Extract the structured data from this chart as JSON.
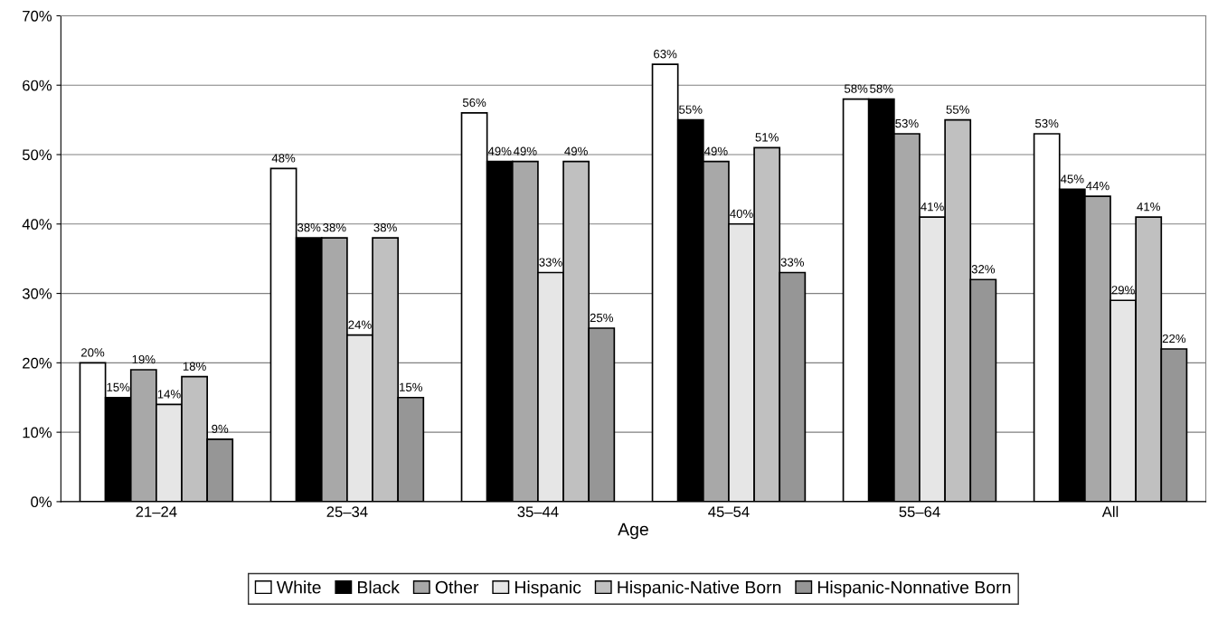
{
  "chart_data": {
    "type": "bar",
    "xlabel": "Age",
    "categories": [
      "21–24",
      "25–34",
      "35–44",
      "45–54",
      "55–64",
      "All"
    ],
    "ylim": [
      0,
      70
    ],
    "yticks": [
      {
        "value": 0,
        "label": "0%"
      },
      {
        "value": 10,
        "label": "10%"
      },
      {
        "value": 20,
        "label": "20%"
      },
      {
        "value": 30,
        "label": "30%"
      },
      {
        "value": 40,
        "label": "40%"
      },
      {
        "value": 50,
        "label": "50%"
      },
      {
        "value": 60,
        "label": "60%"
      },
      {
        "value": 70,
        "label": "70%"
      }
    ],
    "grid": "y",
    "legend": "bottom",
    "series": [
      {
        "name": "White",
        "color": "#ffffff",
        "values": [
          20,
          48,
          56,
          63,
          58,
          53
        ],
        "value_labels": [
          "20%",
          "48%",
          "56%",
          "63%",
          "58%",
          "53%"
        ]
      },
      {
        "name": "Black",
        "color": "#000000",
        "values": [
          15,
          38,
          49,
          55,
          58,
          45
        ],
        "value_labels": [
          "15%",
          "38%",
          "49%",
          "55%",
          "58%",
          "45%"
        ]
      },
      {
        "name": "Other",
        "color": "#a8a8a8",
        "values": [
          19,
          38,
          49,
          49,
          53,
          44
        ],
        "value_labels": [
          "19%",
          "38%",
          "49%",
          "49%",
          "53%",
          "44%"
        ]
      },
      {
        "name": "Hispanic",
        "color": "#e6e6e6",
        "values": [
          14,
          24,
          33,
          40,
          41,
          29
        ],
        "value_labels": [
          "14%",
          "24%",
          "33%",
          "40%",
          "41%",
          "29%"
        ]
      },
      {
        "name": "Hispanic-Native Born",
        "color": "#c0c0c0",
        "values": [
          18,
          38,
          49,
          51,
          55,
          41
        ],
        "value_labels": [
          "18%",
          "38%",
          "49%",
          "51%",
          "55%",
          "41%"
        ]
      },
      {
        "name": "Hispanic-Nonnative Born",
        "color": "#969696",
        "values": [
          9,
          15,
          25,
          33,
          32,
          22
        ],
        "value_labels": [
          "9%",
          "15%",
          "25%",
          "33%",
          "32%",
          "22%"
        ]
      }
    ]
  }
}
